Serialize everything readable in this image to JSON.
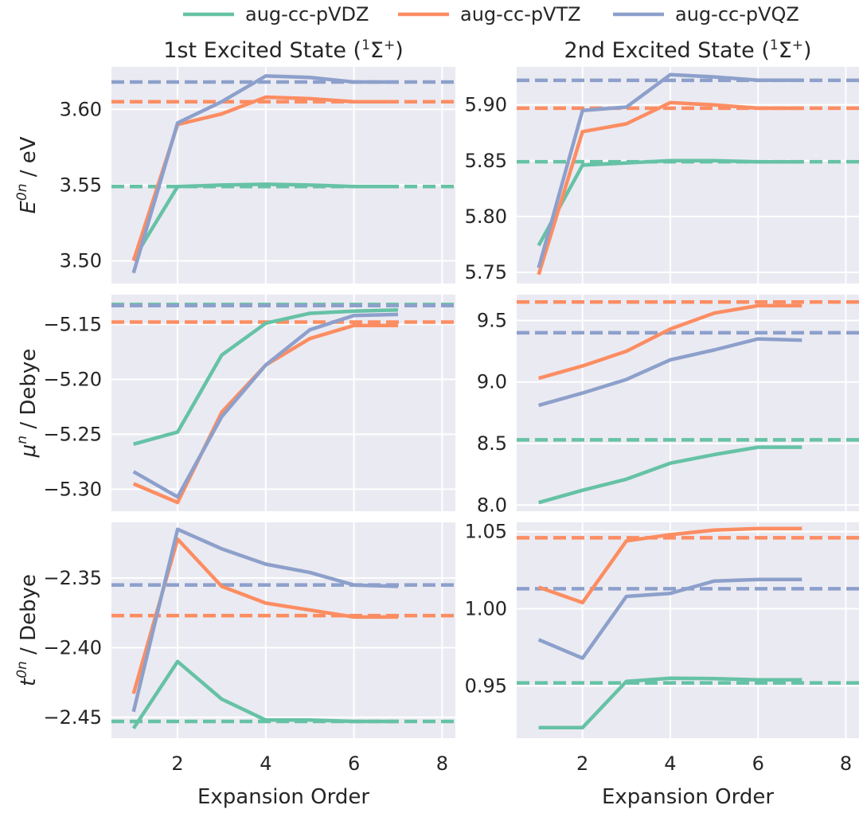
{
  "legend": {
    "entries": [
      {
        "label": "aug-cc-pVDZ",
        "color": "#66c2a5"
      },
      {
        "label": "aug-cc-pVTZ",
        "color": "#fc8d62"
      },
      {
        "label": "aug-cc-pVQZ",
        "color": "#8da0cb"
      }
    ]
  },
  "columns": [
    {
      "title_main": "1st Excited State (",
      "title_sup": "1",
      "title_sigma": "Σ",
      "title_sup2": "+",
      "title_close": ")"
    },
    {
      "title_main": "2nd Excited State (",
      "title_sup": "1",
      "title_sigma": "Σ",
      "title_sup2": "+",
      "title_close": ")"
    }
  ],
  "row_labels": [
    {
      "sym": "E",
      "sup": "0n",
      "rest": " / eV"
    },
    {
      "sym": "μ",
      "sup": "n",
      "rest": " / Debye"
    },
    {
      "sym": "t",
      "sup": "0n",
      "rest": " / Debye"
    }
  ],
  "xlabel": "Expansion Order",
  "chart_data": [
    {
      "type": "line",
      "row": 0,
      "col": 0,
      "x": [
        1,
        2,
        3,
        4,
        5,
        6,
        7
      ],
      "xlim": [
        0.5,
        8.3
      ],
      "xticks": [
        2,
        4,
        6,
        8
      ],
      "ylim": [
        3.485,
        3.628
      ],
      "yticks": [
        3.5,
        3.55,
        3.6
      ],
      "ytick_labels": [
        "3.50",
        "3.55",
        "3.60"
      ],
      "series": [
        {
          "name": "aug-cc-pVDZ",
          "color": "#66c2a5",
          "values": [
            3.501,
            3.549,
            3.55,
            3.5505,
            3.55,
            3.549,
            3.549
          ],
          "reference": 3.549
        },
        {
          "name": "aug-cc-pVTZ",
          "color": "#fc8d62",
          "values": [
            3.5,
            3.59,
            3.597,
            3.608,
            3.607,
            3.605,
            3.605
          ],
          "reference": 3.605
        },
        {
          "name": "aug-cc-pVQZ",
          "color": "#8da0cb",
          "values": [
            3.492,
            3.591,
            3.605,
            3.622,
            3.621,
            3.618,
            3.618
          ],
          "reference": 3.618
        }
      ]
    },
    {
      "type": "line",
      "row": 0,
      "col": 1,
      "x": [
        1,
        2,
        3,
        4,
        5,
        6,
        7
      ],
      "xlim": [
        0.5,
        8.3
      ],
      "xticks": [
        2,
        4,
        6,
        8
      ],
      "ylim": [
        5.74,
        5.934
      ],
      "yticks": [
        5.75,
        5.8,
        5.85,
        5.9
      ],
      "ytick_labels": [
        "5.75",
        "5.80",
        "5.85",
        "5.90"
      ],
      "series": [
        {
          "name": "aug-cc-pVDZ",
          "color": "#66c2a5",
          "values": [
            5.774,
            5.846,
            5.848,
            5.85,
            5.85,
            5.849,
            5.849
          ],
          "reference": 5.849
        },
        {
          "name": "aug-cc-pVTZ",
          "color": "#fc8d62",
          "values": [
            5.748,
            5.876,
            5.883,
            5.902,
            5.9,
            5.897,
            5.897
          ],
          "reference": 5.897
        },
        {
          "name": "aug-cc-pVQZ",
          "color": "#8da0cb",
          "values": [
            5.754,
            5.895,
            5.898,
            5.927,
            5.925,
            5.922,
            5.922
          ],
          "reference": 5.922
        }
      ]
    },
    {
      "type": "line",
      "row": 1,
      "col": 0,
      "x": [
        1,
        2,
        3,
        4,
        5,
        6,
        7
      ],
      "xlim": [
        0.5,
        8.3
      ],
      "xticks": [
        2,
        4,
        6,
        8
      ],
      "ylim": [
        -5.32,
        -5.123
      ],
      "yticks": [
        -5.3,
        -5.25,
        -5.2,
        -5.15
      ],
      "ytick_labels": [
        "−5.30",
        "−5.25",
        "−5.20",
        "−5.15"
      ],
      "series": [
        {
          "name": "aug-cc-pVDZ",
          "color": "#66c2a5",
          "values": [
            -5.259,
            -5.248,
            -5.178,
            -5.149,
            -5.14,
            -5.138,
            -5.137
          ],
          "reference": -5.132
        },
        {
          "name": "aug-cc-pVTZ",
          "color": "#fc8d62",
          "values": [
            -5.295,
            -5.312,
            -5.23,
            -5.187,
            -5.163,
            -5.151,
            -5.151
          ],
          "reference": -5.148
        },
        {
          "name": "aug-cc-pVQZ",
          "color": "#8da0cb",
          "values": [
            -5.284,
            -5.307,
            -5.234,
            -5.187,
            -5.155,
            -5.142,
            -5.141
          ],
          "reference": -5.133
        }
      ]
    },
    {
      "type": "line",
      "row": 1,
      "col": 1,
      "x": [
        1,
        2,
        3,
        4,
        5,
        6,
        7
      ],
      "xlim": [
        0.5,
        8.3
      ],
      "xticks": [
        2,
        4,
        6,
        8
      ],
      "ylim": [
        7.95,
        9.71
      ],
      "yticks": [
        8.0,
        8.5,
        9.0,
        9.5
      ],
      "ytick_labels": [
        "8.0",
        "8.5",
        "9.0",
        "9.5"
      ],
      "series": [
        {
          "name": "aug-cc-pVDZ",
          "color": "#66c2a5",
          "values": [
            8.02,
            8.12,
            8.21,
            8.34,
            8.41,
            8.47,
            8.47
          ],
          "reference": 8.53
        },
        {
          "name": "aug-cc-pVTZ",
          "color": "#fc8d62",
          "values": [
            9.03,
            9.13,
            9.25,
            9.43,
            9.56,
            9.62,
            9.62
          ],
          "reference": 9.65
        },
        {
          "name": "aug-cc-pVQZ",
          "color": "#8da0cb",
          "values": [
            8.81,
            8.91,
            9.02,
            9.18,
            9.26,
            9.35,
            9.34
          ],
          "reference": 9.4
        }
      ]
    },
    {
      "type": "line",
      "row": 2,
      "col": 0,
      "x": [
        1,
        2,
        3,
        4,
        5,
        6,
        7
      ],
      "xlim": [
        0.5,
        8.3
      ],
      "xticks": [
        2,
        4,
        6,
        8
      ],
      "ylim": [
        -2.465,
        -2.31
      ],
      "yticks": [
        -2.45,
        -2.4,
        -2.35
      ],
      "ytick_labels": [
        "−2.45",
        "−2.40",
        "−2.35"
      ],
      "series": [
        {
          "name": "aug-cc-pVDZ",
          "color": "#66c2a5",
          "values": [
            -2.458,
            -2.41,
            -2.437,
            -2.452,
            -2.452,
            -2.453,
            -2.453
          ],
          "reference": -2.453
        },
        {
          "name": "aug-cc-pVTZ",
          "color": "#fc8d62",
          "values": [
            -2.433,
            -2.322,
            -2.356,
            -2.368,
            -2.373,
            -2.378,
            -2.378
          ],
          "reference": -2.377
        },
        {
          "name": "aug-cc-pVQZ",
          "color": "#8da0cb",
          "values": [
            -2.446,
            -2.315,
            -2.329,
            -2.34,
            -2.346,
            -2.355,
            -2.356
          ],
          "reference": -2.355
        }
      ]
    },
    {
      "type": "line",
      "row": 2,
      "col": 1,
      "x": [
        1,
        2,
        3,
        4,
        5,
        6,
        7
      ],
      "xlim": [
        0.5,
        8.3
      ],
      "xticks": [
        2,
        4,
        6,
        8
      ],
      "ylim": [
        0.9162,
        1.056
      ],
      "yticks": [
        0.95,
        1.0,
        1.05
      ],
      "ytick_labels": [
        "0.95",
        "1.00",
        "1.05"
      ],
      "series": [
        {
          "name": "aug-cc-pVDZ",
          "color": "#66c2a5",
          "values": [
            0.923,
            0.923,
            0.953,
            0.955,
            0.9548,
            0.954,
            0.954
          ],
          "reference": 0.952
        },
        {
          "name": "aug-cc-pVTZ",
          "color": "#fc8d62",
          "values": [
            1.014,
            1.004,
            1.044,
            1.048,
            1.051,
            1.052,
            1.052
          ],
          "reference": 1.046
        },
        {
          "name": "aug-cc-pVQZ",
          "color": "#8da0cb",
          "values": [
            0.98,
            0.968,
            1.008,
            1.01,
            1.018,
            1.019,
            1.019
          ],
          "reference": 1.013
        }
      ]
    }
  ]
}
